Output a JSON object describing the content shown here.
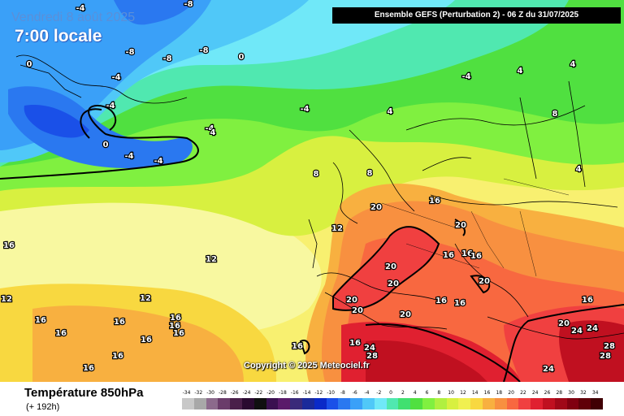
{
  "header": {
    "date": "Vendredi 8 août 2025",
    "hour": "7:00 locale",
    "run": "Ensemble GEFS  (Perturbation 2)  -  06 Z du 31/07/2025"
  },
  "copyright": "Copyright © 2025 Meteociel.fr",
  "footer": {
    "title": "Température 850hPa",
    "subtitle": "(+ 192h)"
  },
  "legend": {
    "values": [
      "-34",
      "-32",
      "-30",
      "-28",
      "-26",
      "-24",
      "-22",
      "-20",
      "-18",
      "-16",
      "-14",
      "-12",
      "-10",
      "-8",
      "-6",
      "-4",
      "-2",
      "0",
      "2",
      "4",
      "6",
      "8",
      "10",
      "12",
      "14",
      "16",
      "18",
      "20",
      "22",
      "24",
      "26",
      "28",
      "30",
      "32",
      "34"
    ],
    "colors": [
      "#c8c8c8",
      "#a8a8a8",
      "#8c6a8c",
      "#6a3c6a",
      "#4a1f4a",
      "#2a0a30",
      "#101010",
      "#3a1050",
      "#5a1a6a",
      "#3a2a7a",
      "#1a2a9a",
      "#0a2ac8",
      "#1a50e8",
      "#2a78f0",
      "#3aa0f8",
      "#50c8f8",
      "#70e8f8",
      "#50e8b0",
      "#40e070",
      "#50e040",
      "#80f040",
      "#b0f040",
      "#d8f040",
      "#f0f050",
      "#f8d840",
      "#f8b040",
      "#f89040",
      "#f86840",
      "#f04040",
      "#e02030",
      "#c01020",
      "#a00818",
      "#800010",
      "#600008",
      "#400004"
    ]
  },
  "map_labels": [
    {
      "t": "-4",
      "lat": 0
    },
    {
      "t": "-8"
    },
    {
      "t": "-8"
    },
    {
      "t": "-8"
    },
    {
      "t": "-8"
    },
    {
      "t": "0"
    },
    {
      "t": "0"
    },
    {
      "t": "-4"
    },
    {
      "t": "-4"
    },
    {
      "t": "-4"
    },
    {
      "t": "-4"
    },
    {
      "t": "0"
    },
    {
      "t": "-4"
    },
    {
      "t": "-4"
    },
    {
      "t": "-4"
    },
    {
      "t": "4"
    },
    {
      "t": "4"
    },
    {
      "t": "8"
    },
    {
      "t": "8"
    },
    {
      "t": "4"
    },
    {
      "t": "4"
    },
    {
      "t": "4"
    },
    {
      "t": "8"
    },
    {
      "t": "12"
    },
    {
      "t": "12"
    },
    {
      "t": "16"
    },
    {
      "t": "20"
    },
    {
      "t": "20"
    },
    {
      "t": "16"
    },
    {
      "t": "16"
    },
    {
      "t": "16"
    },
    {
      "t": "20"
    },
    {
      "t": "20"
    },
    {
      "t": "20"
    },
    {
      "t": "20"
    },
    {
      "t": "20"
    },
    {
      "t": "16"
    },
    {
      "t": "16"
    },
    {
      "t": "16"
    },
    {
      "t": "12"
    },
    {
      "t": "12"
    },
    {
      "t": "16"
    },
    {
      "t": "16"
    },
    {
      "t": "16"
    },
    {
      "t": "16"
    },
    {
      "t": "16"
    },
    {
      "t": "16"
    },
    {
      "t": "16"
    },
    {
      "t": "16"
    },
    {
      "t": "16"
    },
    {
      "t": "16"
    },
    {
      "t": "16"
    },
    {
      "t": "24"
    },
    {
      "t": "28"
    },
    {
      "t": "20"
    },
    {
      "t": "24"
    },
    {
      "t": "24"
    },
    {
      "t": "20"
    },
    {
      "t": "16"
    },
    {
      "t": "28"
    },
    {
      "t": "28"
    },
    {
      "t": "24"
    }
  ]
}
